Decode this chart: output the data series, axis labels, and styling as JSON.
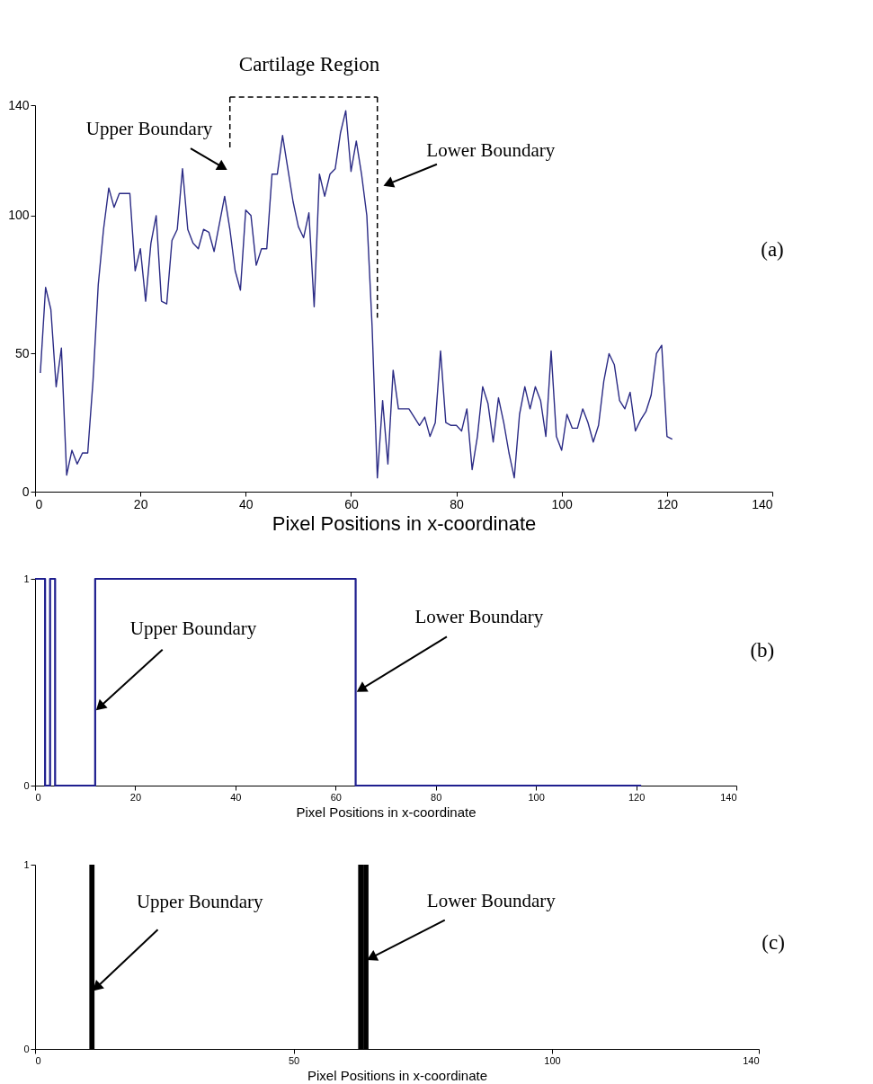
{
  "chart_data": [
    {
      "type": "line",
      "xlabel": "Pixel Positions in x-coordinate",
      "xlim": [
        0,
        140
      ],
      "ylim": [
        0,
        140
      ],
      "xticks": [
        0,
        20,
        40,
        60,
        80,
        100,
        120,
        140
      ],
      "yticks": [
        0,
        50,
        100,
        140
      ],
      "color": "#2b2b85",
      "x": [
        1,
        2,
        3,
        4,
        5,
        6,
        7,
        8,
        9,
        10,
        11,
        12,
        13,
        14,
        15,
        16,
        17,
        18,
        19,
        20,
        21,
        22,
        23,
        24,
        25,
        26,
        27,
        28,
        29,
        30,
        31,
        32,
        33,
        34,
        35,
        36,
        37,
        38,
        39,
        40,
        41,
        42,
        43,
        44,
        45,
        46,
        47,
        48,
        49,
        50,
        51,
        52,
        53,
        54,
        55,
        56,
        57,
        58,
        59,
        60,
        61,
        62,
        63,
        64,
        65,
        66,
        67,
        68,
        69,
        70,
        71,
        72,
        73,
        74,
        75,
        76,
        77,
        78,
        79,
        80,
        81,
        82,
        83,
        84,
        85,
        86,
        87,
        88,
        89,
        90,
        91,
        92,
        93,
        94,
        95,
        96,
        97,
        98,
        99,
        100,
        101,
        102,
        103,
        104,
        105,
        106,
        107,
        108,
        109,
        110,
        111,
        112,
        113,
        114,
        115,
        116,
        117,
        118,
        119,
        120,
        121
      ],
      "values": [
        43,
        74,
        66,
        38,
        52,
        6,
        15,
        10,
        14,
        14,
        40,
        75,
        95,
        110,
        103,
        108,
        108,
        108,
        80,
        88,
        69,
        90,
        100,
        69,
        68,
        91,
        95,
        117,
        95,
        90,
        88,
        95,
        94,
        87,
        97,
        107,
        95,
        80,
        73,
        102,
        100,
        82,
        88,
        88,
        115,
        115,
        129,
        117,
        105,
        96,
        92,
        101,
        67,
        115,
        107,
        115,
        117,
        130,
        138,
        116,
        127,
        115,
        100,
        60,
        5,
        33,
        10,
        44,
        30,
        30,
        30,
        27,
        24,
        27,
        20,
        25,
        51,
        25,
        24,
        24,
        22,
        30,
        8,
        20,
        38,
        32,
        18,
        34,
        25,
        14,
        5,
        28,
        38,
        30,
        38,
        33,
        20,
        51,
        20,
        15,
        28,
        23,
        23,
        30,
        25,
        18,
        24,
        40,
        50,
        46,
        33,
        30,
        36,
        22,
        26,
        29,
        35,
        50,
        53,
        20,
        19
      ],
      "ref_lines": [
        {
          "axis": "x",
          "value": 37,
          "line_style": "dashed",
          "color": "#000000"
        },
        {
          "axis": "x",
          "value": 65,
          "line_style": "dashed",
          "color": "#000000"
        }
      ],
      "annotations": [
        "Cartilage Region",
        "Upper Boundary",
        "Lower Boundary",
        "(a)"
      ]
    },
    {
      "type": "step",
      "xlabel": "Pixel Positions in x-coordinate",
      "xlim": [
        0,
        140
      ],
      "ylim": [
        0,
        1
      ],
      "xticks": [
        0,
        20,
        40,
        60,
        80,
        100,
        120,
        140
      ],
      "yticks": [
        0,
        1
      ],
      "color": "#1f1f8f",
      "x": [
        0,
        2,
        3,
        4,
        12,
        64,
        121
      ],
      "values": [
        1,
        0,
        1,
        0,
        1,
        0,
        0
      ],
      "annotations": [
        {
          "text": "Upper Boundary",
          "x": 12,
          "y": 0.36
        },
        {
          "text": "Lower Boundary",
          "x": 64,
          "y": 0.45
        },
        "(b)"
      ]
    },
    {
      "type": "bar",
      "xlabel": "Pixel Positions in x-coordinate",
      "xlim": [
        0,
        140
      ],
      "ylim": [
        0,
        1
      ],
      "xticks": [
        0,
        50,
        100,
        140
      ],
      "yticks": [
        0,
        1
      ],
      "color": "#000000",
      "x": [
        11,
        63,
        64
      ],
      "values": [
        1,
        1,
        1
      ],
      "annotations": [
        {
          "text": "Upper Boundary",
          "x": 11,
          "y": 0.31
        },
        {
          "text": "Lower Boundary",
          "x": 64,
          "y": 0.48
        },
        "(c)"
      ]
    }
  ]
}
